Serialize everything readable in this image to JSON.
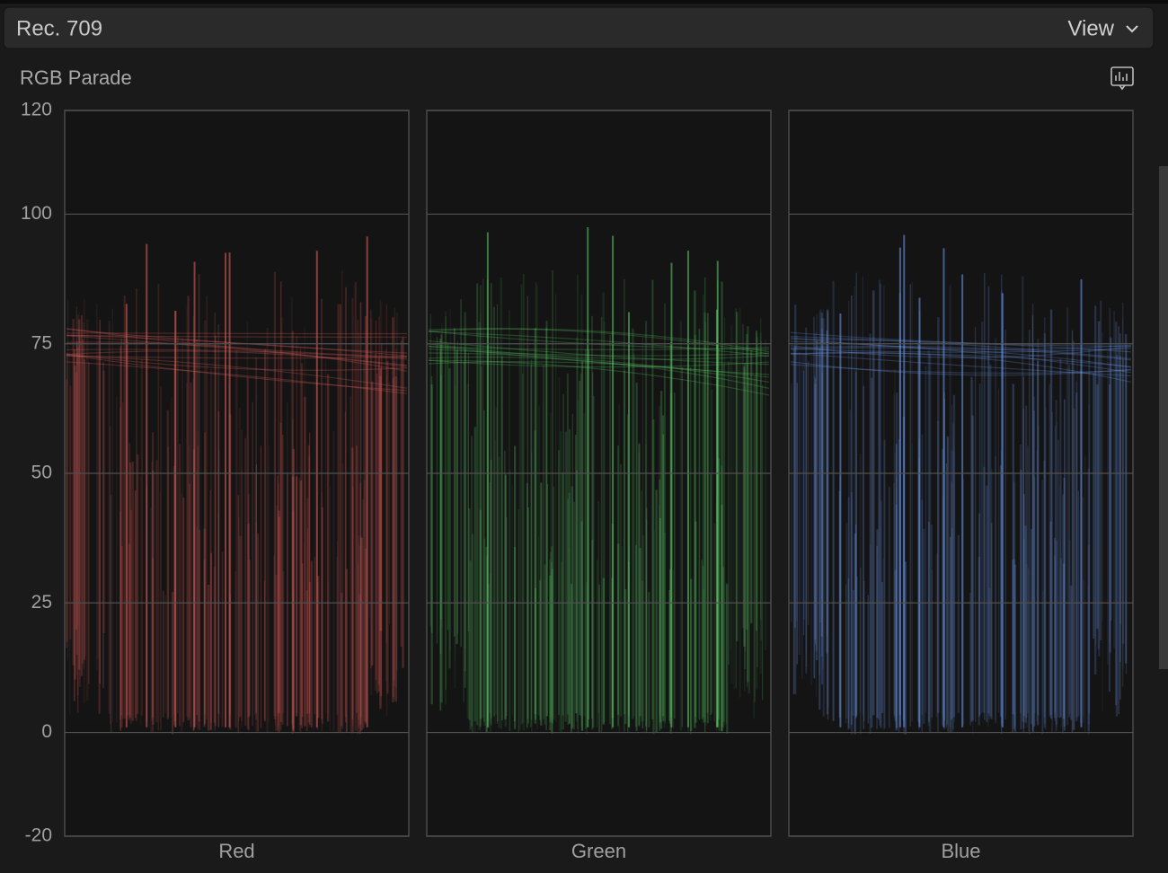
{
  "header": {
    "title": "Rec. 709",
    "menu": "View"
  },
  "scope": {
    "title": "RGB Parade",
    "ticks": [
      120,
      100,
      75,
      50,
      25,
      0,
      -20
    ],
    "panels": [
      {
        "label": "Red",
        "color": "#e8625e"
      },
      {
        "label": "Green",
        "color": "#5ccf68"
      },
      {
        "label": "Blue",
        "color": "#6f9bf0"
      }
    ]
  }
}
